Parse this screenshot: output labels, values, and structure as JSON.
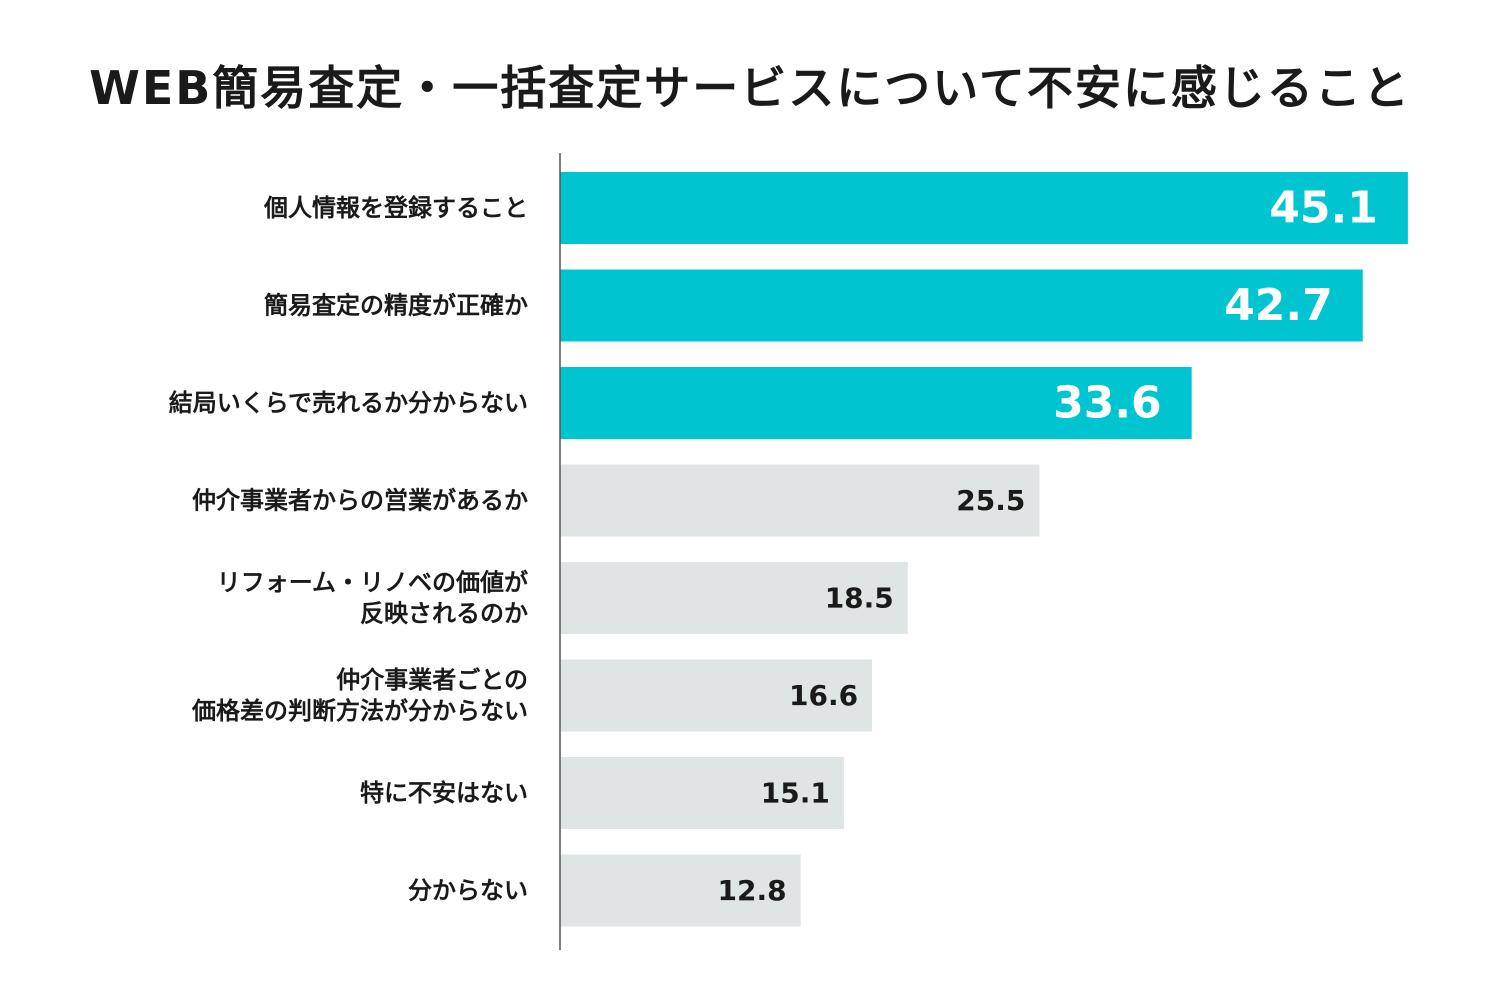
{
  "chart_data": {
    "type": "bar",
    "orientation": "horizontal",
    "title": "WEB簡易査定・一括査定サービスについて不安に感じること",
    "xlabel": "",
    "ylabel": "",
    "xlim": [
      0,
      48
    ],
    "grid": false,
    "legend": "none",
    "categories": [
      [
        "個人情報を登録すること"
      ],
      [
        "簡易査定の精度が正確か"
      ],
      [
        "結局いくらで売れるか分からない"
      ],
      [
        "仲介事業者からの営業があるか"
      ],
      [
        "リフォーム・リノベの価値が",
        "反映されるのか"
      ],
      [
        "仲介事業者ごとの",
        "価格差の判断方法が分からない"
      ],
      [
        "特に不安はない"
      ],
      [
        "分からない"
      ]
    ],
    "values": [
      45.1,
      42.7,
      33.6,
      25.5,
      18.5,
      16.6,
      15.1,
      12.8
    ],
    "value_labels": [
      "45.1",
      "42.7",
      "33.6",
      "25.5",
      "18.5",
      "16.6",
      "15.1",
      "12.8"
    ],
    "highlight_count": 3,
    "colors": {
      "highlight": "#00c5d1",
      "normal": "#dfe4e4",
      "axis": "#555555",
      "label": "#1a1a1a",
      "value_on_highlight": "#ffffff",
      "value_on_normal": "#1a1a1a"
    }
  }
}
